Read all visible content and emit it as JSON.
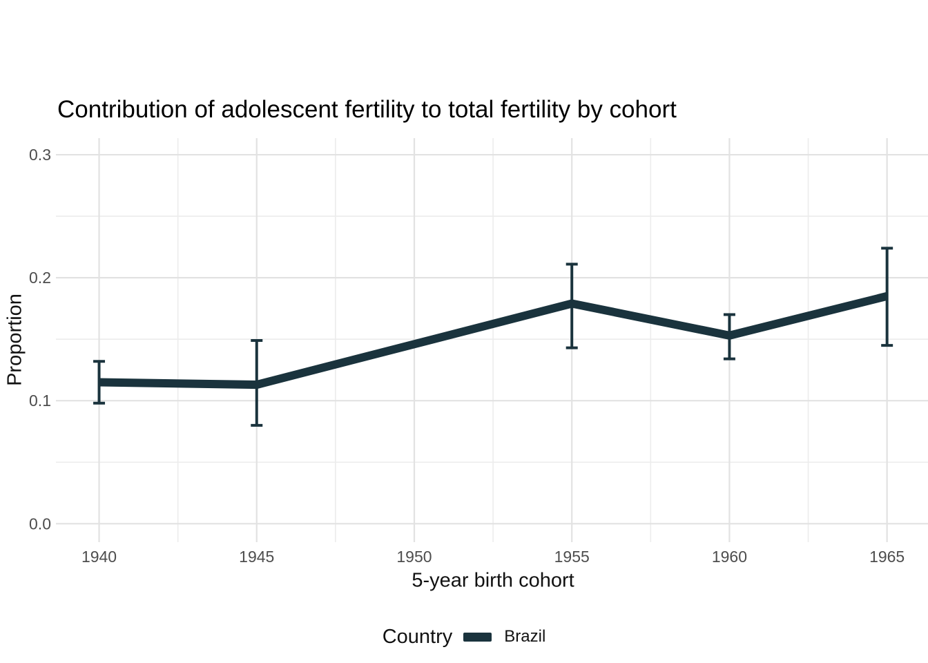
{
  "chart_data": {
    "type": "line",
    "title": "Contribution of adolescent fertility to total fertility by cohort",
    "xlabel": "5-year birth cohort",
    "ylabel": "Proportion",
    "legend_title": "Country",
    "legend_position": "bottom",
    "grid": true,
    "xlim": [
      1938.63,
      1966.3
    ],
    "ylim": [
      -0.015,
      0.3135
    ],
    "x_ticks": [
      1940,
      1945,
      1950,
      1955,
      1960,
      1965
    ],
    "x_tick_labels": [
      "1940",
      "1945",
      "1950",
      "1955",
      "1960",
      "1965"
    ],
    "x_minor_ticks": [
      1942.5,
      1947.5,
      1952.5,
      1957.5,
      1962.5
    ],
    "y_ticks": [
      0.0,
      0.1,
      0.2,
      0.3
    ],
    "y_tick_labels": [
      "0.0",
      "0.1",
      "0.2",
      "0.3"
    ],
    "y_minor_ticks": [
      0.05,
      0.15,
      0.25
    ],
    "series": [
      {
        "name": "Brazil",
        "color": "#1a333d",
        "x": [
          1940,
          1945,
          1955,
          1960,
          1965
        ],
        "values": [
          0.115,
          0.113,
          0.179,
          0.153,
          0.185
        ],
        "ci_lower": [
          0.098,
          0.08,
          0.143,
          0.134,
          0.145
        ],
        "ci_upper": [
          0.132,
          0.149,
          0.211,
          0.17,
          0.224
        ]
      }
    ],
    "colors": {
      "grid_major": "#e2e2e2",
      "grid_minor": "#ececec",
      "tick_text": "#4d4d4d"
    }
  }
}
